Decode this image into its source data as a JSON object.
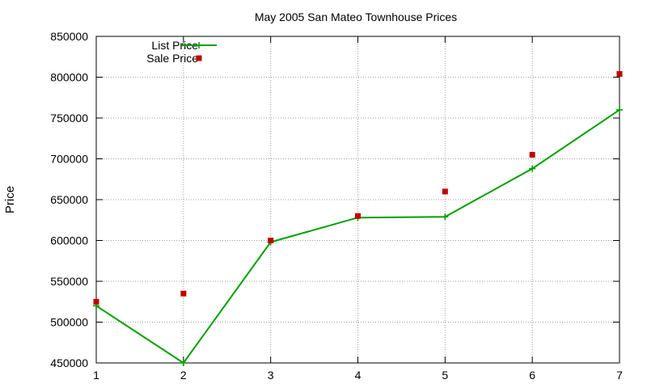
{
  "chart_data": {
    "type": "line",
    "title": "May 2005 San Mateo Townhouse Prices",
    "xlabel": "",
    "ylabel": "Price",
    "x": [
      1,
      2,
      3,
      4,
      5,
      6,
      7
    ],
    "xlim": [
      1,
      7
    ],
    "ylim": [
      450000,
      850000
    ],
    "xticks": [
      "1",
      "2",
      "3",
      "4",
      "5",
      "6",
      "7"
    ],
    "yticks": [
      "450000",
      "500000",
      "550000",
      "600000",
      "650000",
      "700000",
      "750000",
      "800000",
      "850000"
    ],
    "grid": true,
    "legend_position": "top-left",
    "series": [
      {
        "name": "List Price",
        "style": "lines+points",
        "marker": "plus",
        "color": "#00a000",
        "values": [
          520000,
          450000,
          598000,
          628000,
          629000,
          688000,
          760000
        ]
      },
      {
        "name": "Sale Price",
        "style": "points",
        "marker": "square",
        "color": "#c00000",
        "values": [
          525000,
          535000,
          600000,
          630000,
          660000,
          705000,
          804000
        ]
      }
    ]
  }
}
